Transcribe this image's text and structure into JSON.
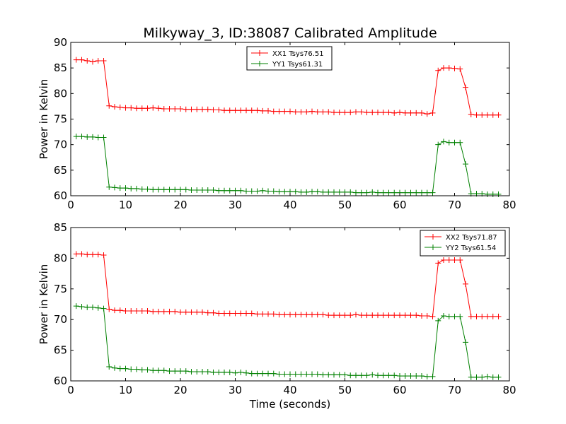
{
  "title": "Milkyway_3, ID:38087 Calibrated Amplitude",
  "chart_data": [
    {
      "type": "line",
      "ylabel": "Power in Kelvin",
      "xlabel": "",
      "xlim": [
        0,
        80
      ],
      "ylim": [
        60,
        90
      ],
      "xticks": [
        "0",
        "10",
        "20",
        "30",
        "40",
        "50",
        "60",
        "70",
        "80"
      ],
      "yticks": [
        "60",
        "65",
        "70",
        "75",
        "80",
        "85",
        "90"
      ],
      "legend_position": "top-center",
      "x": [
        1,
        2,
        3,
        4,
        5,
        6,
        7,
        8,
        9,
        10,
        11,
        12,
        13,
        14,
        15,
        16,
        17,
        18,
        19,
        20,
        21,
        22,
        23,
        24,
        25,
        26,
        27,
        28,
        29,
        30,
        31,
        32,
        33,
        34,
        35,
        36,
        37,
        38,
        39,
        40,
        41,
        42,
        43,
        44,
        45,
        46,
        47,
        48,
        49,
        50,
        51,
        52,
        53,
        54,
        55,
        56,
        57,
        58,
        59,
        60,
        61,
        62,
        63,
        64,
        65,
        66,
        67,
        68,
        69,
        70,
        71,
        72,
        73,
        74,
        75,
        76,
        77,
        78
      ],
      "series": [
        {
          "name": "XX1 Tsys76.51",
          "color": "#ff0000",
          "values": [
            86.6,
            86.6,
            86.4,
            86.2,
            86.4,
            86.4,
            77.6,
            77.4,
            77.3,
            77.2,
            77.2,
            77.1,
            77.1,
            77.1,
            77.2,
            77.1,
            77.0,
            77.0,
            77.0,
            77.0,
            76.9,
            76.9,
            76.9,
            76.9,
            76.9,
            76.8,
            76.8,
            76.7,
            76.7,
            76.7,
            76.7,
            76.7,
            76.7,
            76.7,
            76.6,
            76.6,
            76.5,
            76.5,
            76.5,
            76.5,
            76.4,
            76.4,
            76.4,
            76.5,
            76.4,
            76.4,
            76.4,
            76.3,
            76.3,
            76.3,
            76.3,
            76.4,
            76.4,
            76.3,
            76.3,
            76.3,
            76.3,
            76.3,
            76.2,
            76.3,
            76.2,
            76.2,
            76.2,
            76.2,
            76.0,
            76.2,
            84.5,
            85.0,
            85.0,
            84.9,
            84.8,
            81.2,
            75.9,
            75.8,
            75.8,
            75.8,
            75.8,
            75.8
          ]
        },
        {
          "name": "YY1 Tsys61.31",
          "color": "#008000",
          "values": [
            71.6,
            71.6,
            71.5,
            71.5,
            71.4,
            71.4,
            61.7,
            61.6,
            61.5,
            61.5,
            61.4,
            61.4,
            61.3,
            61.3,
            61.2,
            61.2,
            61.2,
            61.2,
            61.2,
            61.2,
            61.2,
            61.1,
            61.1,
            61.1,
            61.1,
            61.1,
            61.0,
            61.0,
            61.0,
            61.0,
            61.0,
            60.9,
            60.9,
            60.9,
            61.0,
            60.9,
            60.9,
            60.8,
            60.8,
            60.8,
            60.8,
            60.7,
            60.7,
            60.8,
            60.8,
            60.7,
            60.7,
            60.7,
            60.7,
            60.7,
            60.7,
            60.6,
            60.6,
            60.6,
            60.7,
            60.6,
            60.6,
            60.6,
            60.6,
            60.6,
            60.6,
            60.6,
            60.6,
            60.6,
            60.6,
            60.6,
            70.0,
            70.6,
            70.4,
            70.4,
            70.4,
            66.2,
            60.4,
            60.4,
            60.4,
            60.3,
            60.3,
            60.3
          ]
        }
      ]
    },
    {
      "type": "line",
      "ylabel": "Power in Kelvin",
      "xlabel": "Time (seconds)",
      "xlim": [
        0,
        80
      ],
      "ylim": [
        60,
        85
      ],
      "xticks": [
        "0",
        "10",
        "20",
        "30",
        "40",
        "50",
        "60",
        "70",
        "80"
      ],
      "yticks": [
        "60",
        "65",
        "70",
        "75",
        "80",
        "85"
      ],
      "legend_position": "top-right",
      "x": [
        1,
        2,
        3,
        4,
        5,
        6,
        7,
        8,
        9,
        10,
        11,
        12,
        13,
        14,
        15,
        16,
        17,
        18,
        19,
        20,
        21,
        22,
        23,
        24,
        25,
        26,
        27,
        28,
        29,
        30,
        31,
        32,
        33,
        34,
        35,
        36,
        37,
        38,
        39,
        40,
        41,
        42,
        43,
        44,
        45,
        46,
        47,
        48,
        49,
        50,
        51,
        52,
        53,
        54,
        55,
        56,
        57,
        58,
        59,
        60,
        61,
        62,
        63,
        64,
        65,
        66,
        67,
        68,
        69,
        70,
        71,
        72,
        73,
        74,
        75,
        76,
        77,
        78
      ],
      "series": [
        {
          "name": "XX2 Tsys71.87",
          "color": "#ff0000",
          "values": [
            80.7,
            80.7,
            80.6,
            80.6,
            80.6,
            80.5,
            71.7,
            71.5,
            71.5,
            71.4,
            71.4,
            71.4,
            71.4,
            71.4,
            71.3,
            71.3,
            71.3,
            71.3,
            71.3,
            71.2,
            71.2,
            71.2,
            71.2,
            71.2,
            71.1,
            71.1,
            71.0,
            71.0,
            71.0,
            71.0,
            71.0,
            71.0,
            71.0,
            70.9,
            70.9,
            70.9,
            70.9,
            70.8,
            70.8,
            70.8,
            70.8,
            70.8,
            70.8,
            70.8,
            70.8,
            70.8,
            70.7,
            70.7,
            70.7,
            70.7,
            70.7,
            70.8,
            70.7,
            70.7,
            70.7,
            70.7,
            70.7,
            70.7,
            70.7,
            70.7,
            70.7,
            70.7,
            70.7,
            70.6,
            70.6,
            70.5,
            79.2,
            79.7,
            79.7,
            79.7,
            79.7,
            75.8,
            70.5,
            70.5,
            70.5,
            70.5,
            70.5,
            70.5
          ]
        },
        {
          "name": "YY2 Tsys61.54",
          "color": "#008000",
          "values": [
            72.2,
            72.1,
            72.0,
            72.0,
            71.9,
            71.8,
            62.3,
            62.1,
            62.0,
            62.0,
            61.9,
            61.9,
            61.8,
            61.8,
            61.7,
            61.7,
            61.7,
            61.6,
            61.6,
            61.6,
            61.6,
            61.5,
            61.5,
            61.5,
            61.5,
            61.4,
            61.4,
            61.4,
            61.4,
            61.3,
            61.4,
            61.3,
            61.2,
            61.2,
            61.2,
            61.2,
            61.2,
            61.1,
            61.1,
            61.1,
            61.1,
            61.1,
            61.1,
            61.1,
            61.1,
            61.0,
            61.0,
            61.0,
            61.0,
            61.0,
            60.9,
            60.9,
            60.9,
            60.9,
            61.0,
            60.9,
            60.9,
            60.9,
            60.9,
            60.8,
            60.8,
            60.8,
            60.8,
            60.8,
            60.7,
            60.7,
            69.8,
            70.6,
            70.5,
            70.5,
            70.5,
            66.3,
            60.6,
            60.6,
            60.6,
            60.7,
            60.6,
            60.6
          ]
        }
      ]
    }
  ]
}
